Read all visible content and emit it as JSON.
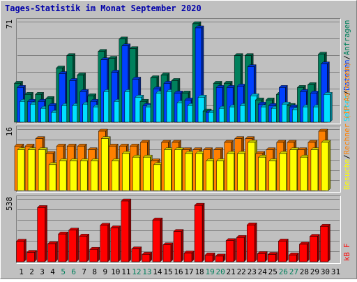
{
  "title": "Tages-Statistik im Monat September 2020",
  "colors": {
    "background": "#c0c0c0",
    "frame_light": "#ffffff",
    "frame_dark": "#808080",
    "title": "#0000aa",
    "gridline": "#808080",
    "anfragen": "#00805c",
    "dateien": "#0040ff",
    "seiten": "#00e0ff",
    "besuche": "#ffff00",
    "rechner": "#ff8000",
    "kbf": "#ff0000",
    "weekday_label": "#000000",
    "weekend_label": "#00805c"
  },
  "chart_data": [
    {
      "type": "bar",
      "panel": "top",
      "title": "",
      "xlabel": "",
      "ylabel": "Anfragen/Dateien/Seiten",
      "max_label": "71",
      "ylim": [
        0,
        71
      ],
      "grid": true,
      "categories": [
        "1",
        "2",
        "3",
        "4",
        "5",
        "6",
        "7",
        "8",
        "9",
        "10",
        "11",
        "12",
        "13",
        "14",
        "15",
        "16",
        "17",
        "18",
        "19",
        "20",
        "21",
        "22",
        "23",
        "24",
        "25",
        "26",
        "27",
        "28",
        "29",
        "30",
        "31"
      ],
      "series": [
        {
          "name": "Anfragen",
          "color": "#00805c",
          "values": [
            28,
            20,
            20,
            17,
            39,
            48,
            34,
            19,
            51,
            46,
            60,
            53,
            15,
            32,
            34,
            30,
            21,
            71,
            8,
            28,
            28,
            48,
            48,
            16,
            16,
            20,
            12,
            25,
            27,
            49,
            0
          ]
        },
        {
          "name": "Dateien",
          "color": "#0040ff",
          "values": [
            25,
            15,
            15,
            12,
            35,
            30,
            22,
            15,
            45,
            36,
            55,
            31,
            12,
            24,
            28,
            21,
            16,
            68,
            7,
            25,
            25,
            26,
            40,
            13,
            12,
            25,
            11,
            22,
            21,
            42,
            0
          ]
        },
        {
          "name": "Seiten",
          "color": "#00e0ff",
          "values": [
            15,
            13,
            10,
            7,
            12,
            12,
            13,
            11,
            22,
            15,
            22,
            18,
            11,
            21,
            22,
            14,
            12,
            18,
            7,
            10,
            11,
            12,
            19,
            11,
            10,
            13,
            9,
            11,
            11,
            20,
            0
          ]
        }
      ]
    },
    {
      "type": "bar",
      "panel": "middle",
      "title": "",
      "xlabel": "",
      "ylabel": "Rechner (IP-Adressen)/Besuche",
      "max_label": "16",
      "ylim": [
        0,
        16
      ],
      "grid": true,
      "categories": [
        "1",
        "2",
        "3",
        "4",
        "5",
        "6",
        "7",
        "8",
        "9",
        "10",
        "11",
        "12",
        "13",
        "14",
        "15",
        "16",
        "17",
        "18",
        "19",
        "20",
        "21",
        "22",
        "23",
        "24",
        "25",
        "26",
        "27",
        "28",
        "29",
        "30",
        "31"
      ],
      "series": [
        {
          "name": "Rechner",
          "color": "#ff8000",
          "values": [
            12,
            12,
            14,
            10,
            12,
            12,
            12,
            11,
            16,
            12,
            12,
            12,
            13,
            8,
            13,
            13,
            11,
            11,
            11,
            11,
            13,
            14,
            14,
            10,
            11,
            13,
            13,
            11,
            13,
            16,
            0
          ]
        },
        {
          "name": "Besuche",
          "color": "#ffff00",
          "values": [
            11,
            11,
            11,
            7,
            8,
            8,
            8,
            8,
            14,
            8,
            10,
            9,
            9,
            7,
            11,
            11,
            10,
            10,
            8,
            8,
            10,
            10,
            13,
            9,
            8,
            10,
            11,
            9,
            11,
            13,
            0
          ]
        }
      ]
    },
    {
      "type": "bar",
      "panel": "bottom",
      "title": "",
      "xlabel": "",
      "ylabel": "kB F",
      "max_label": "538",
      "ylim": [
        0,
        538
      ],
      "grid": true,
      "categories": [
        "1",
        "2",
        "3",
        "4",
        "5",
        "6",
        "7",
        "8",
        "9",
        "10",
        "11",
        "12",
        "13",
        "14",
        "15",
        "16",
        "17",
        "18",
        "19",
        "20",
        "21",
        "22",
        "23",
        "24",
        "25",
        "26",
        "27",
        "28",
        "29",
        "30",
        "31"
      ],
      "series": [
        {
          "name": "kB F",
          "color": "#ff0000",
          "values": [
            182,
            83,
            480,
            160,
            246,
            280,
            227,
            110,
            323,
            300,
            538,
            114,
            66,
            370,
            150,
            268,
            77,
            500,
            60,
            50,
            187,
            215,
            326,
            72,
            65,
            183,
            60,
            155,
            225,
            314,
            0
          ]
        }
      ]
    }
  ],
  "legend_top": [
    {
      "label": "Anfragen",
      "color": "#00805c"
    },
    {
      "label": "Dateien",
      "color": "#0040ff"
    },
    {
      "label": "Seiten",
      "color": "#00e0ff"
    }
  ],
  "legend_middle": [
    {
      "label": "Rechner (IP-Adressen)",
      "color": "#ff8000"
    },
    {
      "label": "Besuche",
      "color": "#ffff00"
    }
  ],
  "legend_bottom": [
    {
      "label": "kB F",
      "color": "#ff0000"
    }
  ],
  "weekend_days": [
    "5",
    "6",
    "12",
    "13",
    "19",
    "20",
    "26",
    "27"
  ]
}
